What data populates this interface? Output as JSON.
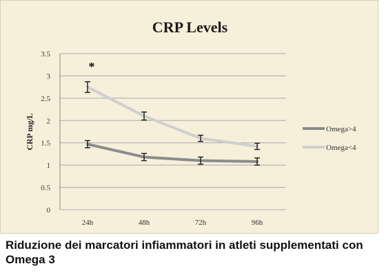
{
  "chart_data": {
    "type": "line",
    "title": "CRP Levels",
    "xlabel": "",
    "ylabel": "CRP mg/L",
    "categories": [
      "24h",
      "48h",
      "72h",
      "96h"
    ],
    "ylim": [
      0,
      3.5
    ],
    "yticks": [
      "0",
      "0.5",
      "1",
      "1.5",
      "2",
      "2.5",
      "3",
      "3.5"
    ],
    "grid": true,
    "legend_position": "right",
    "annotation": "*",
    "series": [
      {
        "name": "Omega>4",
        "values": [
          1.47,
          1.18,
          1.1,
          1.08
        ],
        "errors": [
          0.08,
          0.08,
          0.08,
          0.08
        ],
        "color": "#8c8c8c"
      },
      {
        "name": "Omega<4",
        "values": [
          2.75,
          2.1,
          1.6,
          1.42
        ],
        "errors": [
          0.12,
          0.09,
          0.07,
          0.07
        ],
        "color": "#cfcfcf"
      }
    ]
  },
  "caption": "Riduzione dei marcatori infiammatori in atleti supplementati con Omega 3"
}
